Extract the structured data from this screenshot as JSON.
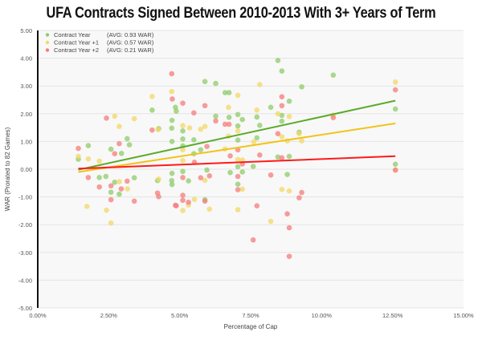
{
  "chart_data": {
    "type": "scatter",
    "title": "UFA Contracts Signed Between 2010-2013 With 3+ Years of Term",
    "xlabel": "Percentage of Cap",
    "ylabel": "WAR (Prorated to 82 Games)",
    "xlim": [
      0,
      15
    ],
    "ylim": [
      -5,
      5
    ],
    "xticks": [
      "0.00%",
      "2.50%",
      "5.00%",
      "7.50%",
      "10.00%",
      "12.50%",
      "15.00%"
    ],
    "xtick_values": [
      0,
      2.5,
      5,
      7.5,
      10,
      12.5,
      15
    ],
    "yticks": [
      "5.00",
      "4.00",
      "3.00",
      "2.00",
      "1.00",
      "0.00",
      "-1.00",
      "-2.00",
      "-3.00",
      "-4.00",
      "-5.00"
    ],
    "ytick_values": [
      5,
      4,
      3,
      2,
      1,
      0,
      -1,
      -2,
      -3,
      -4,
      -5
    ],
    "grid": true,
    "legend_placement": "top-left",
    "series": [
      {
        "name": "Contract Year",
        "avg_label": "(AVG: 0.93 WAR)",
        "color": "#8fcc6a",
        "trend_color": "#5aab2a",
        "trend": [
          [
            1.43,
            -0.02
          ],
          [
            12.6,
            2.47
          ]
        ],
        "points": [
          [
            1.43,
            0.36
          ],
          [
            1.78,
            0.85
          ],
          [
            2.17,
            -0.3
          ],
          [
            2.4,
            -0.26
          ],
          [
            2.58,
            0.72
          ],
          [
            2.58,
            -0.83
          ],
          [
            2.71,
            -0.47
          ],
          [
            2.87,
            -0.9
          ],
          [
            2.95,
            0.57
          ],
          [
            3.15,
            1.1
          ],
          [
            3.23,
            0.88
          ],
          [
            3.4,
            -0.31
          ],
          [
            4.03,
            2.13
          ],
          [
            4.26,
            1.46
          ],
          [
            4.22,
            -0.41
          ],
          [
            4.72,
            1.48
          ],
          [
            4.88,
            2.09
          ],
          [
            4.72,
            -0.41
          ],
          [
            4.73,
            1.76
          ],
          [
            4.73,
            1.0
          ],
          [
            4.73,
            -0.15
          ],
          [
            4.73,
            -0.55
          ],
          [
            4.85,
            2.23
          ],
          [
            5.11,
            1.38
          ],
          [
            5.11,
            1.09
          ],
          [
            5.11,
            0.84
          ],
          [
            5.11,
            -0.08
          ],
          [
            5.31,
            -0.42
          ],
          [
            5.5,
            1.06
          ],
          [
            5.5,
            0.56
          ],
          [
            5.74,
            0.7
          ],
          [
            5.89,
            3.16
          ],
          [
            5.89,
            -1.1
          ],
          [
            5.96,
            -0.03
          ],
          [
            6.27,
            3.09
          ],
          [
            6.27,
            1.91
          ],
          [
            6.6,
            2.76
          ],
          [
            6.74,
            2.76
          ],
          [
            6.74,
            1.87
          ],
          [
            6.78,
            -0.12
          ],
          [
            7.05,
            1.97
          ],
          [
            7.05,
            1.56
          ],
          [
            7.05,
            1.05
          ],
          [
            7.05,
            0.09
          ],
          [
            7.05,
            -0.54
          ],
          [
            7.21,
            1.79
          ],
          [
            7.21,
            -0.1
          ],
          [
            7.59,
            0.1
          ],
          [
            7.72,
            1.13
          ],
          [
            7.72,
            1.88
          ],
          [
            7.82,
            1.58
          ],
          [
            8.21,
            2.23
          ],
          [
            8.46,
            3.92
          ],
          [
            8.6,
            3.54
          ],
          [
            8.46,
            0.44
          ],
          [
            8.6,
            1.94
          ],
          [
            8.6,
            1.73
          ],
          [
            8.86,
            2.45
          ],
          [
            8.86,
            0.46
          ],
          [
            8.79,
            -0.19
          ],
          [
            9.21,
            1.33
          ],
          [
            9.3,
            2.97
          ],
          [
            10.41,
            3.39
          ],
          [
            12.6,
            2.17
          ],
          [
            12.6,
            0.18
          ]
        ]
      },
      {
        "name": "Contract Year +1",
        "avg_label": "(AVG: 0.57 WAR)",
        "color": "#f3d865",
        "trend_color": "#f0c419",
        "trend": [
          [
            1.43,
            -0.1
          ],
          [
            12.6,
            1.65
          ]
        ],
        "points": [
          [
            1.43,
            0.46
          ],
          [
            1.78,
            0.37
          ],
          [
            1.73,
            -1.34
          ],
          [
            2.17,
            0.29
          ],
          [
            2.42,
            -1.48
          ],
          [
            2.58,
            -1.94
          ],
          [
            2.71,
            1.91
          ],
          [
            2.87,
            1.54
          ],
          [
            2.87,
            -0.45
          ],
          [
            3.16,
            -0.71
          ],
          [
            3.4,
            1.82
          ],
          [
            4.03,
            2.62
          ],
          [
            4.24,
            1.43
          ],
          [
            4.26,
            -0.36
          ],
          [
            4.72,
            2.8
          ],
          [
            5.11,
            1.57
          ],
          [
            5.11,
            0.7
          ],
          [
            5.11,
            0.31
          ],
          [
            5.11,
            -1.49
          ],
          [
            5.31,
            -1.29
          ],
          [
            5.52,
            -1.09
          ],
          [
            5.35,
            1.49
          ],
          [
            5.74,
            1.44
          ],
          [
            5.89,
            1.54
          ],
          [
            5.89,
            -0.4
          ],
          [
            6.05,
            -1.44
          ],
          [
            6.6,
            0.73
          ],
          [
            6.72,
            2.23
          ],
          [
            6.72,
            1.19
          ],
          [
            7.05,
            2.66
          ],
          [
            7.05,
            1.38
          ],
          [
            7.05,
            0.35
          ],
          [
            7.05,
            -1.46
          ],
          [
            7.21,
            0.33
          ],
          [
            7.21,
            -0.72
          ],
          [
            7.61,
            0.99
          ],
          [
            7.72,
            2.13
          ],
          [
            7.82,
            3.05
          ],
          [
            8.21,
            -1.88
          ],
          [
            8.46,
            2.0
          ],
          [
            8.6,
            1.17
          ],
          [
            8.6,
            -0.73
          ],
          [
            8.79,
            1.02
          ],
          [
            8.86,
            1.9
          ],
          [
            8.86,
            -0.78
          ],
          [
            9.21,
            1.28
          ],
          [
            9.3,
            1.02
          ],
          [
            10.41,
            1.95
          ],
          [
            12.6,
            3.14
          ],
          [
            12.6,
            -0.03
          ]
        ]
      },
      {
        "name": "Contract Year +2",
        "avg_label": "(AVG: 0.21 WAR)",
        "color": "#f57c7c",
        "trend_color": "#ff1a1a",
        "trend": [
          [
            1.43,
            0.02
          ],
          [
            12.6,
            0.47
          ]
        ],
        "points": [
          [
            1.43,
            0.75
          ],
          [
            1.78,
            -0.3
          ],
          [
            2.17,
            -0.64
          ],
          [
            2.58,
            -0.6
          ],
          [
            2.58,
            -1.1
          ],
          [
            2.42,
            1.84
          ],
          [
            2.87,
            0.92
          ],
          [
            2.71,
            0.56
          ],
          [
            3.15,
            -0.43
          ],
          [
            2.94,
            -0.71
          ],
          [
            3.4,
            -1.15
          ],
          [
            4.03,
            1.41
          ],
          [
            4.22,
            -0.86
          ],
          [
            4.26,
            -0.99
          ],
          [
            4.72,
            3.44
          ],
          [
            4.74,
            2.53
          ],
          [
            4.88,
            -1.32
          ],
          [
            5.11,
            2.38
          ],
          [
            5.5,
            2.03
          ],
          [
            5.89,
            2.29
          ],
          [
            6.27,
            1.74
          ],
          [
            6.6,
            1.62
          ],
          [
            6.74,
            1.62
          ],
          [
            5.11,
            -0.3
          ],
          [
            5.11,
            -0.94
          ],
          [
            5.11,
            -1.12
          ],
          [
            5.31,
            -1.19
          ],
          [
            4.85,
            -1.3
          ],
          [
            5.52,
            0.25
          ],
          [
            5.74,
            -0.31
          ],
          [
            5.89,
            -1.15
          ],
          [
            5.96,
            0.82
          ],
          [
            6.78,
            0.48
          ],
          [
            7.05,
            0.7
          ],
          [
            7.05,
            -0.26
          ],
          [
            7.05,
            -0.74
          ],
          [
            7.21,
            0.19
          ],
          [
            7.59,
            -2.55
          ],
          [
            7.72,
            -1.32
          ],
          [
            7.82,
            0.51
          ],
          [
            8.21,
            -0.21
          ],
          [
            8.46,
            1.28
          ],
          [
            8.6,
            2.61
          ],
          [
            8.6,
            2.29
          ],
          [
            8.6,
            0.41
          ],
          [
            8.79,
            -1.61
          ],
          [
            8.86,
            -2.11
          ],
          [
            8.86,
            -3.14
          ],
          [
            9.21,
            -1.03
          ],
          [
            9.3,
            -0.84
          ],
          [
            6.05,
            -0.24
          ],
          [
            10.41,
            1.86
          ],
          [
            12.6,
            2.86
          ],
          [
            12.6,
            -0.03
          ]
        ]
      }
    ]
  }
}
